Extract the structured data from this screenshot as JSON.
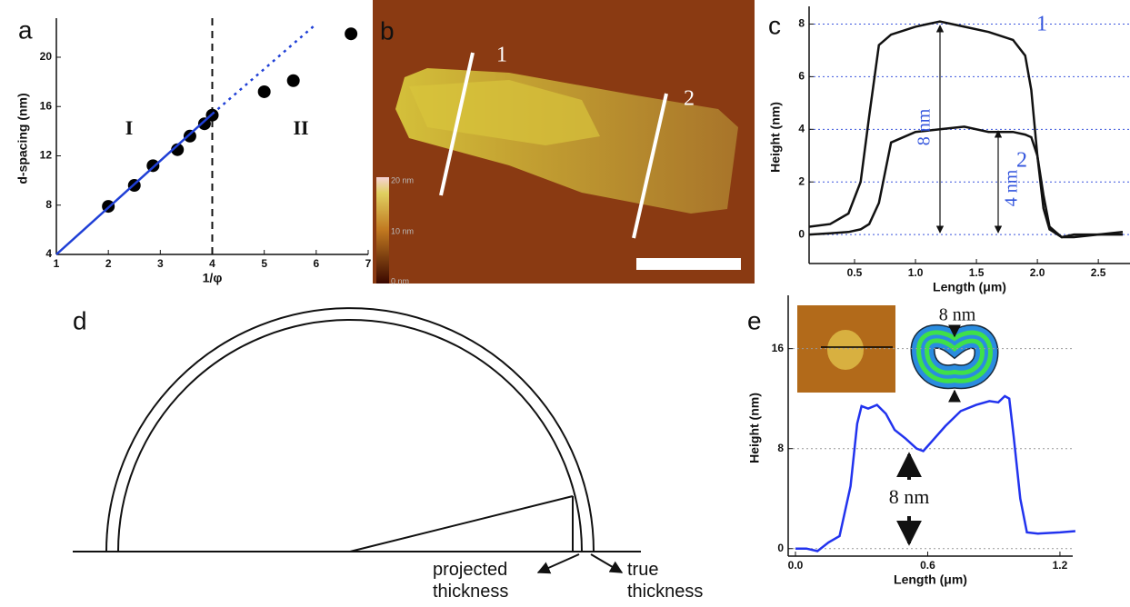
{
  "chart_data": [
    {
      "type": "scatter",
      "label": "a",
      "xlabel": "1/φ",
      "ylabel": "d-spacing (nm)",
      "xlim": [
        1,
        7
      ],
      "ylim": [
        4,
        22.8
      ],
      "xticks": [
        1,
        2,
        3,
        4,
        5,
        6,
        7
      ],
      "yticks": [
        4,
        8,
        12,
        16,
        20
      ],
      "grid": false,
      "regions": [
        "I",
        "II"
      ],
      "divider_x": 4,
      "series": [
        {
          "style": "points",
          "color": "#000000",
          "x": [
            2,
            2.5,
            2.86,
            3.33,
            3.57,
            3.85,
            4,
            5,
            5.56,
            6.67
          ],
          "values": [
            7.9,
            9.6,
            11.2,
            12.5,
            13.6,
            14.6,
            15.3,
            17.2,
            18.1,
            21.9
          ]
        },
        {
          "style": "solid",
          "color": "#1f3fd6",
          "x": [
            1,
            4
          ],
          "values": [
            4,
            15.4
          ]
        },
        {
          "style": "dotted",
          "color": "#1f3fd6",
          "x": [
            4,
            6
          ],
          "values": [
            15.4,
            22.7
          ]
        }
      ]
    },
    {
      "type": "line",
      "label": "c",
      "xlabel": "Length (μm)",
      "ylabel": "Height (nm)",
      "xlim": [
        0.127,
        2.76
      ],
      "ylim": [
        -1.1,
        8.5
      ],
      "xticks": [
        0.5,
        {
          "value": 1,
          "label": "1.0"
        },
        1.5,
        {
          "value": 2,
          "label": "2.0"
        },
        2.5
      ],
      "yticks": [
        0,
        2,
        4,
        6,
        8
      ],
      "grid": true,
      "grid_color": "#3b55dd",
      "annotations": [
        "1",
        "2",
        "8 nm",
        "4 nm"
      ],
      "series": [
        {
          "style": "solid",
          "color": "#111111",
          "x": [
            0.13,
            0.3,
            0.45,
            0.55,
            0.62,
            0.7,
            0.8,
            1.0,
            1.2,
            1.4,
            1.6,
            1.8,
            1.9,
            1.95,
            2.0,
            2.05,
            2.1,
            2.2,
            2.3,
            2.5,
            2.7
          ],
          "values": [
            0.3,
            0.4,
            0.8,
            2.0,
            4.5,
            7.2,
            7.6,
            7.9,
            8.1,
            7.9,
            7.7,
            7.4,
            6.8,
            5.5,
            3.0,
            1.0,
            0.2,
            -0.1,
            0,
            0,
            0.1
          ]
        },
        {
          "style": "solid",
          "color": "#111111",
          "x": [
            0.13,
            0.3,
            0.45,
            0.55,
            0.62,
            0.7,
            0.8,
            1.0,
            1.2,
            1.4,
            1.6,
            1.8,
            1.9,
            1.95,
            2.0,
            2.05,
            2.1,
            2.2,
            2.3,
            2.5,
            2.7
          ],
          "values": [
            0,
            0.05,
            0.1,
            0.2,
            0.4,
            1.2,
            3.5,
            3.9,
            4.0,
            4.1,
            3.9,
            3.9,
            3.8,
            3.7,
            3.0,
            1.5,
            0.3,
            -0.1,
            -0.1,
            0,
            0
          ]
        }
      ]
    },
    {
      "type": "line",
      "label": "e",
      "xlabel": "Length (μm)",
      "ylabel": "Height (nm)",
      "xlim": [
        -0.033,
        1.258
      ],
      "ylim": [
        -0.6,
        19.9
      ],
      "xticks": [
        {
          "value": 0,
          "label": "0.0"
        },
        0.6,
        1.2
      ],
      "yticks": [
        0,
        8,
        16
      ],
      "grid": true,
      "grid_color": "#999999",
      "annotations": [
        "8 nm",
        "8 nm"
      ],
      "series": [
        {
          "style": "solid",
          "color": "#2233ee",
          "x": [
            0,
            0.05,
            0.1,
            0.15,
            0.2,
            0.25,
            0.28,
            0.3,
            0.33,
            0.37,
            0.41,
            0.45,
            0.5,
            0.55,
            0.58,
            0.62,
            0.68,
            0.75,
            0.82,
            0.88,
            0.92,
            0.95,
            0.97,
            0.99,
            1.02,
            1.05,
            1.1,
            1.2,
            1.27
          ],
          "values": [
            0,
            0,
            -0.2,
            0.5,
            1,
            5,
            10,
            11.4,
            11.2,
            11.5,
            10.8,
            9.5,
            8.8,
            8,
            7.8,
            8.6,
            9.8,
            11,
            11.5,
            11.8,
            11.7,
            12.2,
            12,
            9,
            4,
            1.3,
            1.2,
            1.3,
            1.4
          ]
        }
      ]
    }
  ],
  "panel_b": {
    "label": "b",
    "lines": [
      "1",
      "2"
    ],
    "colorbar": [
      "20 nm",
      "10 nm",
      "0 nm"
    ]
  },
  "panel_d": {
    "label": "d",
    "labels": [
      "projected thickness",
      "true thickness"
    ]
  }
}
